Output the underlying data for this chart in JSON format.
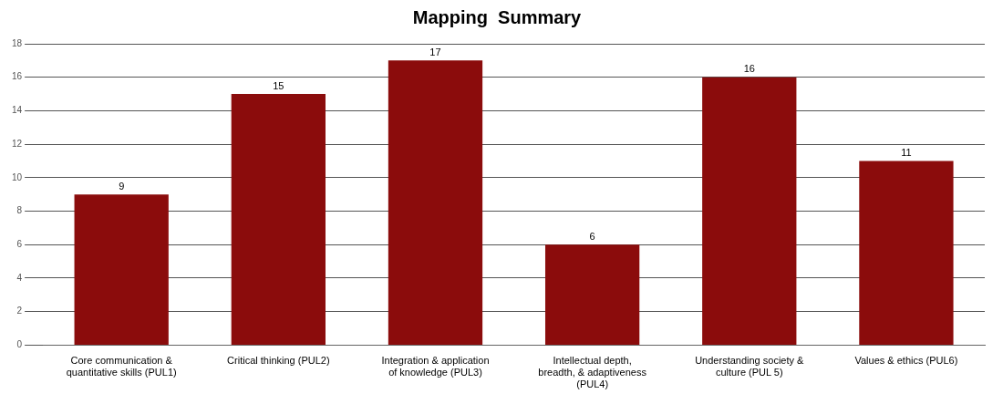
{
  "chart_data": {
    "type": "bar",
    "title": "Mapping  Summary",
    "categories": [
      "Core communication & quantitative skills (PUL1)",
      "Critical thinking (PUL2)",
      "Integration & application of knowledge (PUL3)",
      "Intellectual depth, breadth, & adaptiveness (PUL4)",
      "Understanding society & culture (PUL 5)",
      "Values & ethics (PUL6)"
    ],
    "values": [
      9,
      15,
      17,
      6,
      16,
      11
    ],
    "color": "#8b0c0c",
    "ylim": [
      0,
      18
    ],
    "yticks": [
      0,
      2,
      4,
      6,
      8,
      10,
      12,
      14,
      16,
      18
    ],
    "grid": "y",
    "data_labels": true,
    "legend": false
  }
}
